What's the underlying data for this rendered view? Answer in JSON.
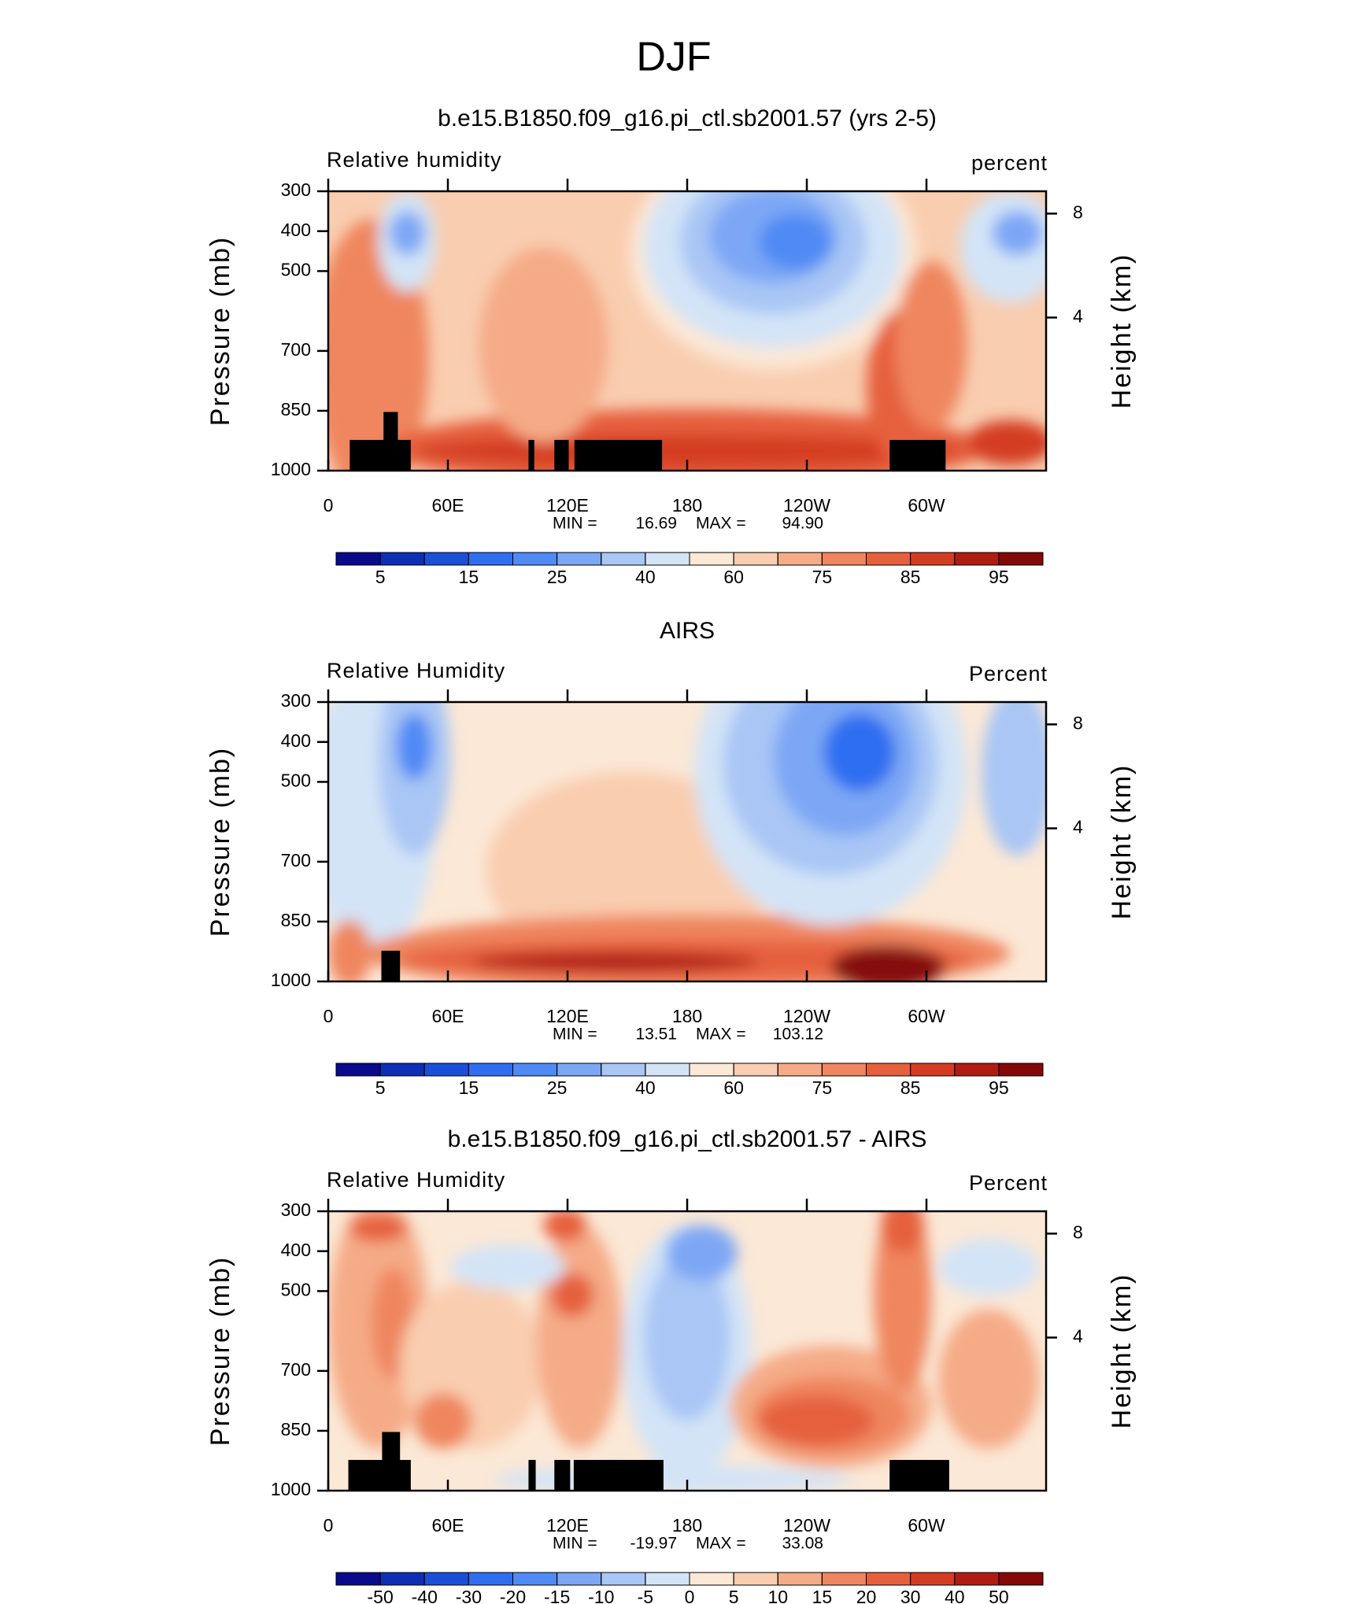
{
  "figure_title": "DJF",
  "chart_data": [
    {
      "type": "contour",
      "title": "b.e15.B1850.f09_g16.pi_ctl.sb2001.57 (yrs 2-5)",
      "left_label": "Relative humidity",
      "right_label": "percent",
      "y_label": "Pressure (mb)",
      "y2_label": "Height (km)",
      "xlim": [
        0,
        360
      ],
      "xticks": [
        0,
        {
          "value": 60,
          "label": "60E"
        },
        {
          "value": 120,
          "label": "120E"
        },
        180,
        {
          "value": 240,
          "label": "120W"
        },
        {
          "value": 300,
          "label": "60W"
        }
      ],
      "ylim": [
        1000,
        300
      ],
      "yticks": [
        300,
        400,
        500,
        700,
        850,
        1000
      ],
      "y2ticks": [
        8,
        4
      ],
      "stats": {
        "names": [
          "MIN =",
          "MAX ="
        ],
        "values": [
          16.69,
          94.9
        ],
        "value_labels": [
          "16.69",
          "94.90"
        ]
      },
      "colorbar": {
        "levels": [
          5,
          10,
          15,
          20,
          25,
          30,
          40,
          50,
          60,
          70,
          75,
          80,
          85,
          90,
          95
        ],
        "labels": [
          5,
          15,
          25,
          40,
          60,
          75,
          85,
          95
        ],
        "colors": [
          "#0a0a8c",
          "#0c2fb5",
          "#1a4fd8",
          "#2f6ef0",
          "#4f8af5",
          "#7da7f5",
          "#a9c6f5",
          "#d3e4f7",
          "#fbe8d6",
          "#f9cdb0",
          "#f5ab87",
          "#ef865f",
          "#e6603c",
          "#d43c21",
          "#b01c12",
          "#850808"
        ]
      }
    },
    {
      "type": "contour",
      "title": "AIRS",
      "left_label": "Relative Humidity",
      "right_label": "Percent",
      "y_label": "Pressure (mb)",
      "y2_label": "Height (km)",
      "xlim": [
        0,
        360
      ],
      "xticks": [
        0,
        {
          "value": 60,
          "label": "60E"
        },
        {
          "value": 120,
          "label": "120E"
        },
        180,
        {
          "value": 240,
          "label": "120W"
        },
        {
          "value": 300,
          "label": "60W"
        }
      ],
      "ylim": [
        1000,
        300
      ],
      "yticks": [
        300,
        400,
        500,
        700,
        850,
        1000
      ],
      "y2ticks": [
        8,
        4
      ],
      "stats": {
        "names": [
          "MIN =",
          "MAX ="
        ],
        "values": [
          13.51,
          103.12
        ]
      },
      "colorbar": {
        "levels": [
          5,
          10,
          15,
          20,
          25,
          30,
          40,
          50,
          60,
          70,
          75,
          80,
          85,
          90,
          95
        ],
        "labels": [
          5,
          15,
          25,
          40,
          60,
          75,
          85,
          95
        ],
        "colors": [
          "#0a0a8c",
          "#0c2fb5",
          "#1a4fd8",
          "#2f6ef0",
          "#4f8af5",
          "#7da7f5",
          "#a9c6f5",
          "#d3e4f7",
          "#fbe8d6",
          "#f9cdb0",
          "#f5ab87",
          "#ef865f",
          "#e6603c",
          "#d43c21",
          "#b01c12",
          "#850808"
        ]
      }
    },
    {
      "type": "contour",
      "title": "b.e15.B1850.f09_g16.pi_ctl.sb2001.57 - AIRS",
      "left_label": "Relative Humidity",
      "right_label": "Percent",
      "y_label": "Pressure (mb)",
      "y2_label": "Height (km)",
      "xlim": [
        0,
        360
      ],
      "xticks": [
        0,
        {
          "value": 60,
          "label": "60E"
        },
        {
          "value": 120,
          "label": "120E"
        },
        180,
        {
          "value": 240,
          "label": "120W"
        },
        {
          "value": 300,
          "label": "60W"
        }
      ],
      "ylim": [
        1000,
        300
      ],
      "yticks": [
        300,
        400,
        500,
        700,
        850,
        1000
      ],
      "y2ticks": [
        8,
        4
      ],
      "stats": {
        "names": [
          "MIN =",
          "MAX ="
        ],
        "values": [
          -19.97,
          33.08
        ]
      },
      "colorbar": {
        "levels": [
          -50,
          -40,
          -30,
          -20,
          -15,
          -10,
          -5,
          0,
          5,
          10,
          15,
          20,
          30,
          40,
          50
        ],
        "labels": [
          -50,
          -40,
          -30,
          -20,
          -15,
          -10,
          -5,
          0,
          5,
          10,
          15,
          20,
          30,
          40,
          50
        ],
        "colors": [
          "#0a0a8c",
          "#0c2fb5",
          "#1a4fd8",
          "#2f6ef0",
          "#4f8af5",
          "#7da7f5",
          "#a9c6f5",
          "#d3e4f7",
          "#fbe8d6",
          "#f9cdb0",
          "#f5ab87",
          "#ef865f",
          "#e6603c",
          "#d43c21",
          "#b01c12",
          "#850808"
        ]
      }
    }
  ]
}
